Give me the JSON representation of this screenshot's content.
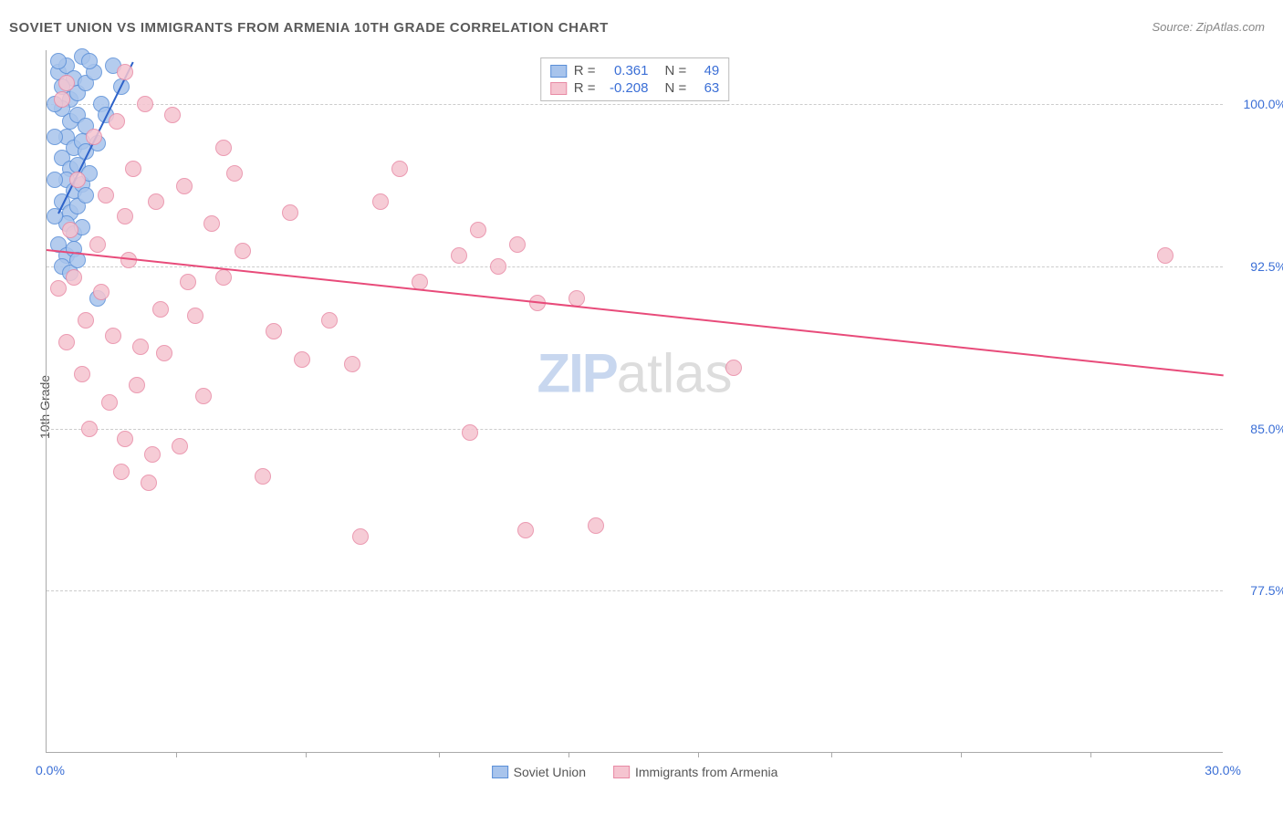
{
  "title": "SOVIET UNION VS IMMIGRANTS FROM ARMENIA 10TH GRADE CORRELATION CHART",
  "source": "Source: ZipAtlas.com",
  "ylabel": "10th Grade",
  "watermark_zip": "ZIP",
  "watermark_atlas": "atlas",
  "chart": {
    "type": "scatter",
    "xlim": [
      0,
      30
    ],
    "ylim": [
      70,
      102.5
    ],
    "x_tick_labels": {
      "left": "0.0%",
      "right": "30.0%"
    },
    "x_minor_ticks": [
      3.3,
      6.6,
      10,
      13.3,
      16.6,
      20,
      23.3,
      26.6
    ],
    "y_gridlines": [
      77.5,
      85.0,
      92.5,
      100.0
    ],
    "y_tick_labels": [
      "77.5%",
      "85.0%",
      "92.5%",
      "100.0%"
    ],
    "background_color": "#ffffff",
    "grid_color": "#cccccc",
    "axis_color": "#aaaaaa",
    "label_color": "#3b6fd6",
    "marker_radius": 9,
    "marker_fill_opacity": 0.3
  },
  "series": [
    {
      "name": "Soviet Union",
      "color_fill": "#a8c4ec",
      "color_stroke": "#5a8fd8",
      "R": "0.361",
      "N": "49",
      "trend": {
        "x1": 0.3,
        "y1": 95.0,
        "x2": 2.2,
        "y2": 102.0,
        "color": "#2d62c9",
        "width": 2
      },
      "points": [
        [
          0.3,
          101.5
        ],
        [
          0.5,
          101.8
        ],
        [
          0.7,
          101.2
        ],
        [
          0.4,
          100.8
        ],
        [
          0.6,
          100.2
        ],
        [
          0.8,
          100.5
        ],
        [
          1.0,
          101.0
        ],
        [
          0.4,
          99.8
        ],
        [
          0.6,
          99.2
        ],
        [
          0.8,
          99.5
        ],
        [
          1.0,
          99.0
        ],
        [
          1.2,
          101.5
        ],
        [
          1.4,
          100.0
        ],
        [
          0.5,
          98.5
        ],
        [
          0.7,
          98.0
        ],
        [
          0.9,
          98.3
        ],
        [
          0.4,
          97.5
        ],
        [
          0.6,
          97.0
        ],
        [
          0.8,
          97.2
        ],
        [
          1.0,
          97.8
        ],
        [
          0.5,
          96.5
        ],
        [
          0.7,
          96.0
        ],
        [
          0.9,
          96.3
        ],
        [
          1.1,
          96.8
        ],
        [
          0.4,
          95.5
        ],
        [
          0.6,
          95.0
        ],
        [
          0.8,
          95.3
        ],
        [
          1.0,
          95.8
        ],
        [
          0.5,
          94.5
        ],
        [
          0.7,
          94.0
        ],
        [
          0.9,
          94.3
        ],
        [
          0.3,
          93.5
        ],
        [
          0.5,
          93.0
        ],
        [
          0.7,
          93.3
        ],
        [
          0.4,
          92.5
        ],
        [
          0.6,
          92.2
        ],
        [
          0.8,
          92.8
        ],
        [
          1.7,
          101.8
        ],
        [
          1.9,
          100.8
        ],
        [
          1.5,
          99.5
        ],
        [
          1.3,
          98.2
        ],
        [
          0.3,
          102.0
        ],
        [
          0.9,
          102.2
        ],
        [
          1.1,
          102.0
        ],
        [
          0.2,
          100.0
        ],
        [
          0.2,
          98.5
        ],
        [
          0.2,
          96.5
        ],
        [
          0.2,
          94.8
        ],
        [
          1.3,
          91.0
        ]
      ]
    },
    {
      "name": "Immigrants from Armenia",
      "color_fill": "#f5c4d0",
      "color_stroke": "#e88aa5",
      "R": "-0.208",
      "N": "63",
      "trend": {
        "x1": 0,
        "y1": 93.3,
        "x2": 30,
        "y2": 87.5,
        "color": "#e84b7a",
        "width": 2
      },
      "points": [
        [
          0.5,
          101.0
        ],
        [
          1.2,
          98.5
        ],
        [
          1.8,
          99.2
        ],
        [
          2.5,
          100.0
        ],
        [
          3.2,
          99.5
        ],
        [
          0.8,
          96.5
        ],
        [
          1.5,
          95.8
        ],
        [
          2.2,
          97.0
        ],
        [
          0.6,
          94.2
        ],
        [
          1.3,
          93.5
        ],
        [
          2.0,
          94.8
        ],
        [
          2.8,
          95.5
        ],
        [
          3.5,
          96.2
        ],
        [
          4.2,
          94.5
        ],
        [
          0.7,
          92.0
        ],
        [
          1.4,
          91.3
        ],
        [
          2.1,
          92.8
        ],
        [
          2.9,
          90.5
        ],
        [
          3.6,
          91.8
        ],
        [
          1.0,
          90.0
        ],
        [
          1.7,
          89.3
        ],
        [
          2.4,
          88.8
        ],
        [
          0.9,
          87.5
        ],
        [
          1.6,
          86.2
        ],
        [
          2.3,
          87.0
        ],
        [
          3.0,
          88.5
        ],
        [
          1.1,
          85.0
        ],
        [
          2.0,
          84.5
        ],
        [
          2.7,
          83.8
        ],
        [
          3.4,
          84.2
        ],
        [
          1.9,
          83.0
        ],
        [
          2.6,
          82.5
        ],
        [
          4.8,
          96.8
        ],
        [
          5.0,
          93.2
        ],
        [
          5.5,
          82.8
        ],
        [
          6.5,
          88.2
        ],
        [
          7.2,
          90.0
        ],
        [
          8.5,
          95.5
        ],
        [
          9.0,
          97.0
        ],
        [
          9.5,
          91.8
        ],
        [
          10.5,
          93.0
        ],
        [
          11.0,
          94.2
        ],
        [
          11.5,
          92.5
        ],
        [
          12.0,
          93.5
        ],
        [
          12.5,
          90.8
        ],
        [
          13.5,
          91.0
        ],
        [
          17.5,
          87.8
        ],
        [
          8.0,
          80.0
        ],
        [
          12.2,
          80.3
        ],
        [
          10.8,
          84.8
        ],
        [
          28.5,
          93.0
        ],
        [
          4.5,
          92.0
        ],
        [
          5.8,
          89.5
        ],
        [
          6.2,
          95.0
        ],
        [
          7.8,
          88.0
        ],
        [
          3.8,
          90.2
        ],
        [
          4.0,
          86.5
        ],
        [
          0.4,
          100.2
        ],
        [
          14.0,
          80.5
        ],
        [
          0.3,
          91.5
        ],
        [
          0.5,
          89.0
        ],
        [
          4.5,
          98.0
        ],
        [
          2.0,
          101.5
        ]
      ]
    }
  ],
  "stats_legend": {
    "r_label": "R =",
    "n_label": "N ="
  },
  "bottom_legend": {
    "items": [
      "Soviet Union",
      "Immigrants from Armenia"
    ]
  }
}
